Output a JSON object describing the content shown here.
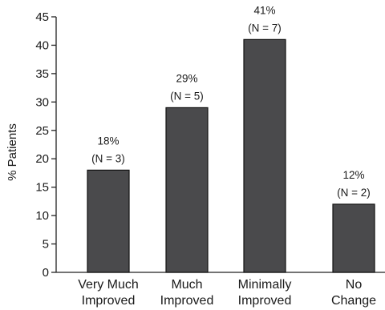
{
  "chart_data": {
    "type": "bar",
    "ylabel": "% Patients",
    "xlabel": "",
    "ylim": [
      0,
      45
    ],
    "yticks": [
      0,
      5,
      10,
      15,
      20,
      25,
      30,
      35,
      40,
      45
    ],
    "grid": false,
    "categories": [
      [
        "Very Much",
        "Improved"
      ],
      [
        "Much",
        "Improved"
      ],
      [
        "Minimally",
        "Improved"
      ],
      [
        "No",
        "Change"
      ]
    ],
    "values": [
      18,
      29,
      41,
      12
    ],
    "value_labels": [
      "18%",
      "29%",
      "41%",
      "12%"
    ],
    "n_labels": [
      "(N = 3)",
      "(N = 5)",
      "(N = 7)",
      "(N = 2)"
    ],
    "bar_color": "#4a4a4c"
  }
}
